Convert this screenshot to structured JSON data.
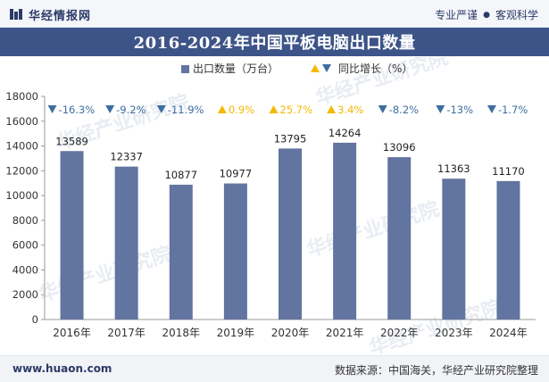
{
  "header": {
    "brand": "华经情报网",
    "tagline_left": "专业严谨",
    "tagline_right": "客观科学"
  },
  "footer": {
    "url": "www.huaon.com",
    "source": "数据来源：中国海关，华经产业研究院整理"
  },
  "watermark": "华经产业研究院",
  "chart_data": {
    "type": "bar",
    "title": "2016-2024年中国平板电脑出口数量",
    "categories": [
      "2016年",
      "2017年",
      "2018年",
      "2019年",
      "2020年",
      "2021年",
      "2022年",
      "2023年",
      "2024年"
    ],
    "series": [
      {
        "name": "出口数量（万台）",
        "values": [
          13589,
          12337,
          10877,
          10977,
          13795,
          14264,
          13096,
          11363,
          11170
        ],
        "color": "#6274a0"
      }
    ],
    "growth": {
      "name": "同比增长（%）",
      "values": [
        -16.3,
        -9.2,
        -11.9,
        0.9,
        25.7,
        3.4,
        -8.2,
        -13,
        -1.7
      ],
      "labels": [
        "-16.3%",
        "-9.2%",
        "-11.9%",
        "0.9%",
        "25.7%",
        "3.4%",
        "-8.2%",
        "-13%",
        "-1.7%"
      ],
      "up_color": "#f5b800",
      "down_color": "#3e6ea0"
    },
    "ylim": [
      0,
      18000
    ],
    "yticks": [
      0,
      2000,
      4000,
      6000,
      8000,
      10000,
      12000,
      14000,
      16000,
      18000
    ],
    "grid": false,
    "legend_position": "top"
  }
}
